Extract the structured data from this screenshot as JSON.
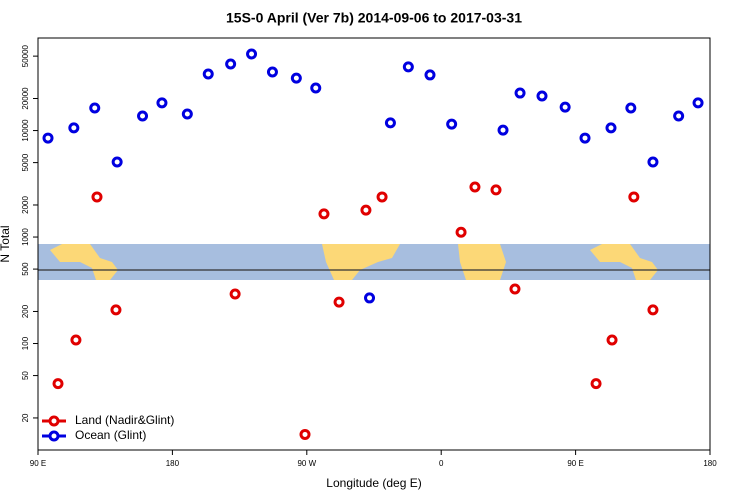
{
  "chart_data": {
    "type": "scatter",
    "title": "15S-0 April (Ver 7b)   2014-09-06 to 2017-03-31",
    "x_label": "Longitude (deg E)",
    "y_label": "N Total",
    "xlim": [
      90,
      540
    ],
    "xticks": [
      {
        "value": 90,
        "label": "90 E"
      },
      180,
      {
        "value": 270,
        "label": "90 W"
      },
      {
        "value": 360,
        "label": "0"
      },
      {
        "value": 450,
        "label": "90 E"
      },
      {
        "value": 540,
        "label": "180"
      }
    ],
    "ylim": [
      10,
      74000
    ],
    "yticks": [
      20,
      50,
      100,
      200,
      500,
      1000,
      2000,
      5000,
      10000,
      20000,
      50000
    ],
    "ylog": true,
    "legend": "bottom-left",
    "series": [
      {
        "name": "Land (Nadir&Glint)",
        "color": "#e00000",
        "x": [
          103.4,
          115.4,
          129.5,
          142.2,
          222,
          268.8,
          281.5,
          291.6,
          309.6,
          320.4,
          373.3,
          382.6,
          396.7,
          409.4,
          463.7,
          474.4,
          489,
          501.8
        ],
        "values": [
          42,
          108,
          2380,
          207,
          292,
          14,
          1650,
          245,
          1790,
          2380,
          1110,
          2950,
          2770,
          325,
          42,
          108,
          2380,
          207
        ]
      },
      {
        "name": "Ocean (Glint)",
        "color": "#0000e0",
        "x": [
          96.7,
          114,
          128,
          143,
          160,
          173,
          190,
          204,
          219,
          233,
          247,
          263,
          276,
          312,
          326,
          338,
          352.5,
          367,
          401.4,
          412.8,
          427.5,
          443,
          456.3,
          473.7,
          487,
          501.8,
          519,
          532
        ],
        "values": [
          8500,
          10600,
          16300,
          5070,
          13700,
          18200,
          14300,
          34000,
          42200,
          52400,
          35500,
          31100,
          25100,
          268,
          11800,
          39600,
          33300,
          11500,
          10100,
          22500,
          21100,
          16600,
          8500,
          10600,
          16300,
          5070,
          13700,
          18200
        ]
      }
    ]
  }
}
